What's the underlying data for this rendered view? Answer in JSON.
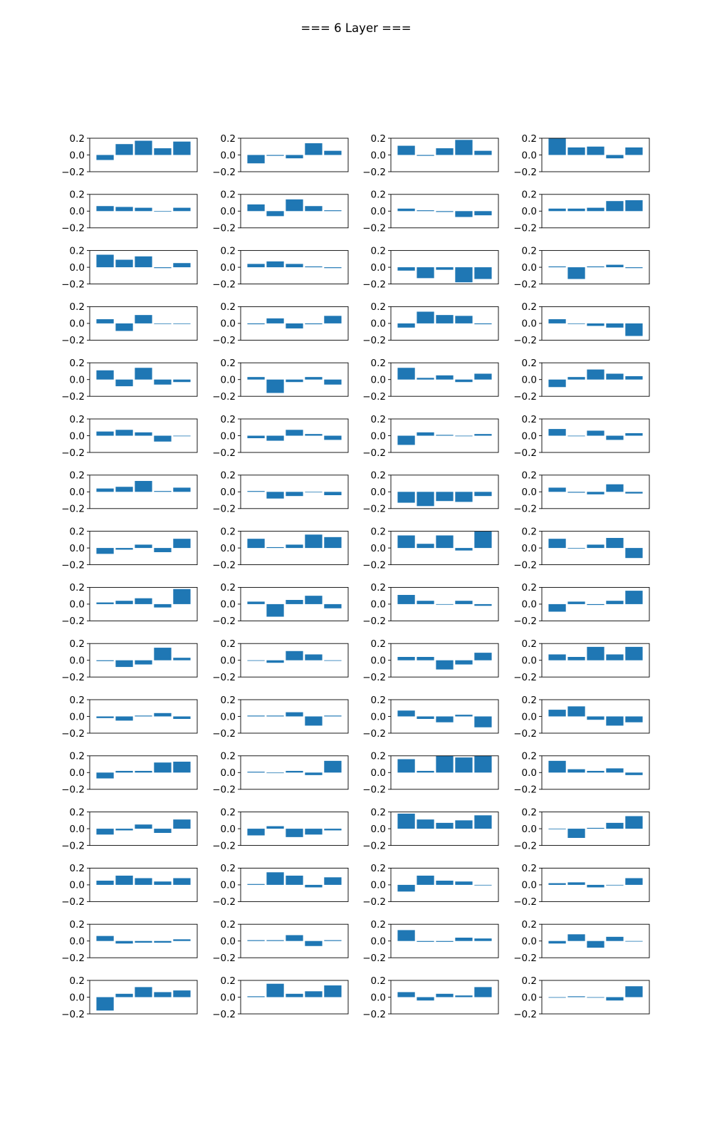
{
  "title": "=== 6 Layer  ===",
  "chart_data": {
    "type": "bar",
    "layout": {
      "rows": 16,
      "cols": 4
    },
    "bar_color": "#1f77b4",
    "ylim": [
      -0.2,
      0.2
    ],
    "yticks": [
      0.2,
      0.0,
      -0.2
    ],
    "ytick_labels": [
      "0.2",
      "0.0",
      "−0.2"
    ],
    "xticks_visible": false,
    "subplots": [
      [
        -0.06,
        0.13,
        0.17,
        0.08,
        0.16
      ],
      [
        -0.1,
        -0.01,
        -0.04,
        0.14,
        0.05
      ],
      [
        0.11,
        -0.01,
        0.08,
        0.18,
        0.05
      ],
      [
        0.2,
        0.09,
        0.1,
        -0.04,
        0.09
      ],
      [
        0.06,
        0.05,
        0.04,
        0.0,
        0.04
      ],
      [
        0.08,
        -0.06,
        0.14,
        0.06,
        0.01
      ],
      [
        0.03,
        0.01,
        -0.01,
        -0.07,
        -0.05
      ],
      [
        0.03,
        0.03,
        0.04,
        0.12,
        0.13
      ],
      [
        0.15,
        0.09,
        0.13,
        -0.01,
        0.05
      ],
      [
        0.04,
        0.07,
        0.04,
        0.01,
        -0.01
      ],
      [
        -0.04,
        -0.13,
        -0.03,
        -0.18,
        -0.14
      ],
      [
        0.01,
        -0.14,
        0.01,
        0.03,
        -0.01
      ],
      [
        0.05,
        -0.09,
        0.1,
        0.0,
        0.0
      ],
      [
        -0.01,
        0.06,
        -0.06,
        -0.01,
        0.09
      ],
      [
        -0.05,
        0.14,
        0.1,
        0.09,
        -0.01
      ],
      [
        0.05,
        0.0,
        -0.03,
        -0.05,
        -0.15
      ],
      [
        0.11,
        -0.08,
        0.14,
        -0.06,
        -0.03
      ],
      [
        0.03,
        -0.16,
        -0.03,
        0.03,
        -0.06
      ],
      [
        0.14,
        0.02,
        0.05,
        -0.03,
        0.07
      ],
      [
        -0.09,
        0.03,
        0.12,
        0.07,
        0.04
      ],
      [
        0.05,
        0.07,
        0.04,
        -0.07,
        0.0
      ],
      [
        -0.03,
        -0.06,
        0.07,
        0.02,
        -0.05
      ],
      [
        -0.11,
        0.04,
        0.01,
        0.0,
        0.02
      ],
      [
        0.08,
        0.0,
        0.06,
        -0.05,
        0.03
      ],
      [
        0.04,
        0.06,
        0.13,
        0.01,
        0.05
      ],
      [
        0.01,
        -0.08,
        -0.05,
        0.0,
        -0.04
      ],
      [
        -0.13,
        -0.17,
        -0.11,
        -0.12,
        -0.05
      ],
      [
        0.05,
        -0.01,
        -0.03,
        0.09,
        -0.02
      ],
      [
        -0.07,
        -0.02,
        0.04,
        -0.05,
        0.11
      ],
      [
        0.11,
        0.01,
        0.04,
        0.16,
        0.13
      ],
      [
        0.15,
        0.05,
        0.15,
        -0.03,
        0.2
      ],
      [
        0.11,
        0.0,
        0.04,
        0.12,
        -0.12
      ],
      [
        0.02,
        0.04,
        0.07,
        -0.04,
        0.18
      ],
      [
        0.03,
        -0.15,
        0.05,
        0.1,
        -0.05
      ],
      [
        0.11,
        0.04,
        0.0,
        0.04,
        -0.02
      ],
      [
        -0.09,
        0.03,
        -0.01,
        0.04,
        0.16
      ],
      [
        -0.01,
        -0.08,
        -0.05,
        0.15,
        0.03
      ],
      [
        0.0,
        -0.03,
        0.11,
        0.07,
        0.0
      ],
      [
        0.04,
        0.04,
        -0.11,
        -0.05,
        0.09
      ],
      [
        0.07,
        0.04,
        0.16,
        0.07,
        0.16
      ],
      [
        -0.02,
        -0.05,
        0.01,
        0.04,
        -0.03
      ],
      [
        0.01,
        0.01,
        0.05,
        -0.11,
        0.01
      ],
      [
        0.07,
        -0.03,
        -0.07,
        0.02,
        -0.13
      ],
      [
        0.08,
        0.12,
        -0.04,
        -0.11,
        -0.07
      ],
      [
        -0.07,
        0.02,
        0.02,
        0.12,
        0.13
      ],
      [
        0.01,
        0.0,
        0.02,
        -0.03,
        0.14
      ],
      [
        0.16,
        0.02,
        0.2,
        0.18,
        0.2
      ],
      [
        0.14,
        0.04,
        0.02,
        0.05,
        -0.03
      ],
      [
        -0.07,
        -0.02,
        0.05,
        -0.05,
        0.11
      ],
      [
        -0.08,
        0.03,
        -0.1,
        -0.07,
        -0.02
      ],
      [
        0.18,
        0.11,
        0.07,
        0.1,
        0.16
      ],
      [
        0.0,
        -0.11,
        0.01,
        0.07,
        0.15
      ],
      [
        0.05,
        0.11,
        0.08,
        0.04,
        0.08
      ],
      [
        0.01,
        0.15,
        0.11,
        -0.03,
        0.09
      ],
      [
        -0.08,
        0.11,
        0.05,
        0.04,
        0.0
      ],
      [
        0.02,
        0.03,
        -0.03,
        0.0,
        0.08
      ],
      [
        0.06,
        -0.03,
        -0.02,
        -0.02,
        0.02
      ],
      [
        0.01,
        0.01,
        0.07,
        -0.06,
        0.01
      ],
      [
        0.13,
        -0.01,
        -0.01,
        0.04,
        0.03
      ],
      [
        -0.03,
        0.08,
        -0.08,
        0.05,
        0.0
      ],
      [
        -0.16,
        0.04,
        0.12,
        0.06,
        0.08
      ],
      [
        0.01,
        0.16,
        0.04,
        0.07,
        0.14
      ],
      [
        0.06,
        -0.04,
        0.04,
        0.02,
        0.12
      ],
      [
        0.0,
        0.01,
        0.0,
        -0.04,
        0.13
      ]
    ]
  }
}
